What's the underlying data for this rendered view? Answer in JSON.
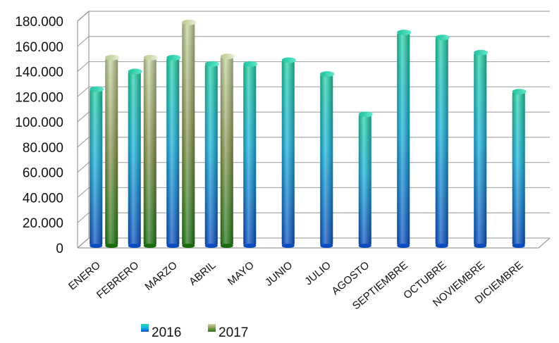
{
  "chart_data": {
    "type": "bar",
    "categories": [
      "ENERO",
      "FEBRERO",
      "MARZO",
      "ABRIL",
      "MAYO",
      "JUNIO",
      "JULIO",
      "AGOSTO",
      "SEPTIEMBRE",
      "OCTUBRE",
      "NOVIEMBRE",
      "DICIEMBRE"
    ],
    "series": [
      {
        "name": "2016",
        "values": [
          126000,
          140000,
          151000,
          146000,
          146000,
          149000,
          138000,
          106000,
          171000,
          167000,
          155000,
          124000
        ]
      },
      {
        "name": "2017",
        "values": [
          151000,
          151000,
          179000,
          152000,
          null,
          null,
          null,
          null,
          null,
          null,
          null,
          null
        ]
      }
    ],
    "title": "",
    "xlabel": "",
    "ylabel": "",
    "ylim": [
      0,
      180000
    ],
    "yticks": [
      "0",
      "20.000",
      "40.000",
      "60.000",
      "80.000",
      "100.000",
      "120.000",
      "140.000",
      "160.000",
      "180.000"
    ],
    "grid": true,
    "legend": "bottom-left",
    "colors": {
      "2016": "#1fa8d8",
      "2017": "#8fa060"
    }
  }
}
